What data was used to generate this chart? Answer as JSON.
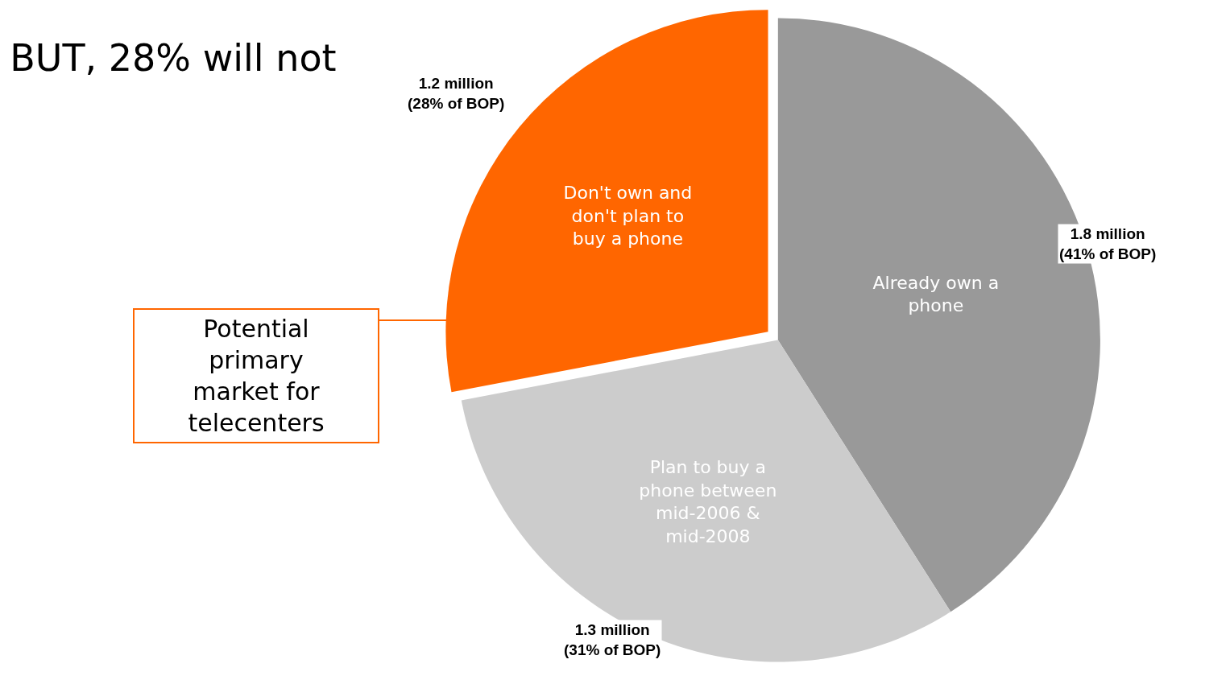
{
  "chart_data": {
    "type": "pie",
    "title": "BUT, 28% will not",
    "categories": [
      "Already own a phone",
      "Plan to buy a phone between mid-2006 & mid-2008",
      "Don't own and don't plan to buy a phone"
    ],
    "values": [
      41,
      31,
      28
    ],
    "colors": [
      "#999999",
      "#cccccc",
      "#ff6600"
    ],
    "value_labels": [
      "1.8 million\n(41% of BOP)",
      "1.3 million\n(31% of BOP)",
      "1.2 million\n(28% of BOP)"
    ],
    "annotations": [
      "Potential primary market for telecenters"
    ],
    "legend": false
  }
}
